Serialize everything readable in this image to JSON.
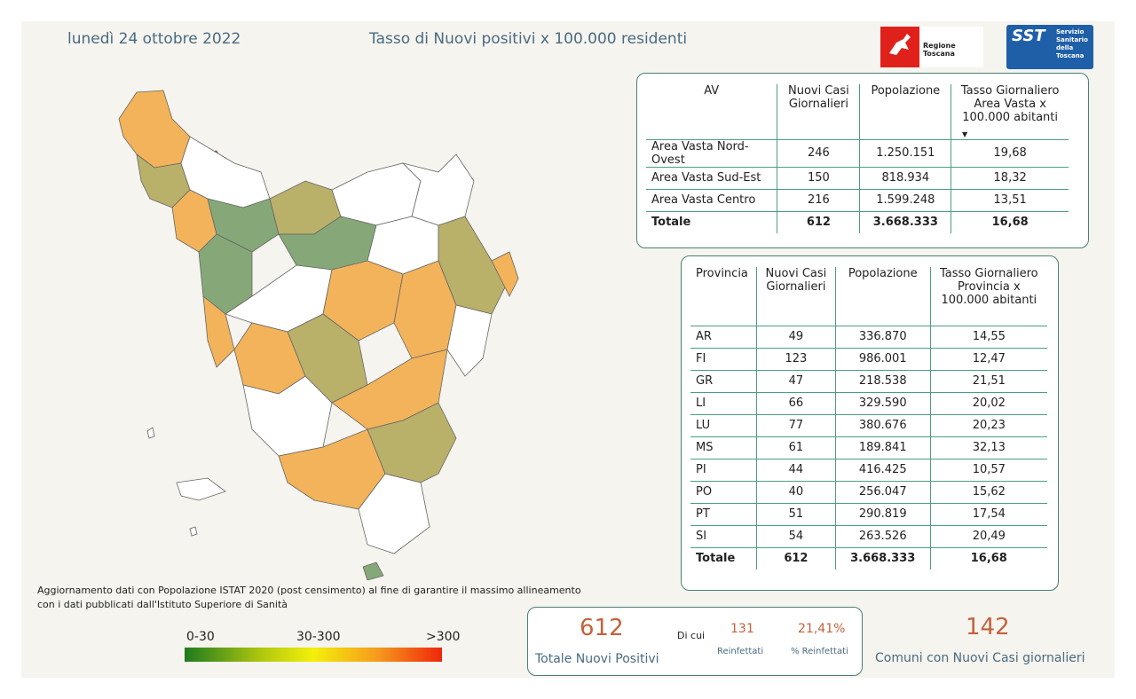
{
  "header": {
    "date": "lunedì 24 ottobre 2022",
    "title": "Tasso di Nuovi positivi x 100.000 residenti",
    "logo_region_text": "Regione Toscana",
    "logo_sst_text": "SST",
    "logo_sst_sub": "Servizio Sanitario della Toscana"
  },
  "area_vasta_table": {
    "headers": [
      "AV",
      "Nuovi Casi Giornalieri",
      "Popolazione",
      "Tasso Giornaliero Area Vasta x 100.000 abitanti"
    ],
    "rows": [
      [
        "Area Vasta Nord-Ovest",
        "246",
        "1.250.151",
        "19,68"
      ],
      [
        "Area Vasta Sud-Est",
        "150",
        "818.934",
        "18,32"
      ],
      [
        "Area Vasta Centro",
        "216",
        "1.599.248",
        "13,51"
      ]
    ],
    "total": [
      "Totale",
      "612",
      "3.668.333",
      "16,68"
    ]
  },
  "provincia_table": {
    "headers": [
      "Provincia",
      "Nuovi Casi Giornalieri",
      "Popolazione",
      "Tasso Giornaliero Provincia x 100.000 abitanti"
    ],
    "rows": [
      [
        "AR",
        "49",
        "336.870",
        "14,55"
      ],
      [
        "FI",
        "123",
        "986.001",
        "12,47"
      ],
      [
        "GR",
        "47",
        "218.538",
        "21,51"
      ],
      [
        "LI",
        "66",
        "329.590",
        "20,02"
      ],
      [
        "LU",
        "77",
        "380.676",
        "20,23"
      ],
      [
        "MS",
        "61",
        "189.841",
        "32,13"
      ],
      [
        "PI",
        "44",
        "416.425",
        "10,57"
      ],
      [
        "PO",
        "40",
        "256.047",
        "15,62"
      ],
      [
        "PT",
        "51",
        "290.819",
        "17,54"
      ],
      [
        "SI",
        "54",
        "263.526",
        "20,49"
      ]
    ],
    "total": [
      "Totale",
      "612",
      "3.668.333",
      "16,68"
    ]
  },
  "note": "Aggiornamento dati con Popolazione ISTAT 2020 (post censimento) al fine di garantire il massimo allineamento con i dati pubblicati dall'Istituto Superiore di Sanità",
  "legend": {
    "labels": [
      "0-30",
      "30-300",
      ">300"
    ],
    "colors": [
      "#1e7a1e",
      "#f4f00a",
      "#f0260c"
    ]
  },
  "kpis": {
    "totale_value": "612",
    "totale_label": "Totale Nuovi Positivi",
    "di_cui": "Di cui",
    "reinfettati_value": "131",
    "reinfettati_label": "Reinfettati",
    "pct_value": "21,41%",
    "pct_label": "% Reinfettati",
    "comuni_value": "142",
    "comuni_label": "Comuni con Nuovi Casi giornalieri"
  },
  "map_colors": {
    "orange": "#f2b35a",
    "olive": "#b9b06a",
    "green": "#86a878",
    "red": "#cc5533",
    "white": "#ffffff"
  }
}
